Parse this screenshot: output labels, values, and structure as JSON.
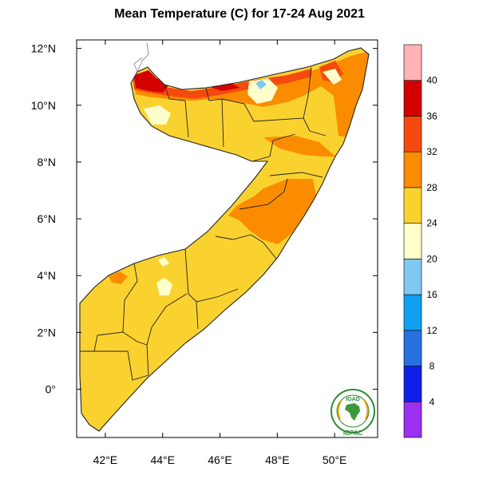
{
  "title": "Mean Temperature (C) for 17-24 Aug 2021",
  "map": {
    "lon_range": [
      41,
      51.5
    ],
    "lat_range": [
      -1.7,
      12.3
    ],
    "lat_ticks": [
      {
        "value": 12,
        "label": "12°N"
      },
      {
        "value": 10,
        "label": "10°N"
      },
      {
        "value": 8,
        "label": "8°N"
      },
      {
        "value": 6,
        "label": "6°N"
      },
      {
        "value": 4,
        "label": "4°N"
      },
      {
        "value": 2,
        "label": "2°N"
      },
      {
        "value": 0,
        "label": "0°"
      }
    ],
    "lon_ticks": [
      {
        "value": 42,
        "label": "42°E"
      },
      {
        "value": 44,
        "label": "44°E"
      },
      {
        "value": 46,
        "label": "46°E"
      },
      {
        "value": 48,
        "label": "48°E"
      },
      {
        "value": 50,
        "label": "50°E"
      }
    ],
    "colors": {
      "base": "#fad230",
      "warm": "#fb8c00",
      "hot": "#f54a0f",
      "very_hot": "#d40000",
      "mild": "#ffffcc",
      "cool": "#80c8f0"
    }
  },
  "colorbar": {
    "bins": [
      {
        "color": "#9a30f0"
      },
      {
        "color": "#1020e8"
      },
      {
        "color": "#2870e0"
      },
      {
        "color": "#10a0f0"
      },
      {
        "color": "#80c8f0"
      },
      {
        "color": "#ffffcc"
      },
      {
        "color": "#fad230"
      },
      {
        "color": "#fb8c00"
      },
      {
        "color": "#f54a0f"
      },
      {
        "color": "#d40000"
      },
      {
        "color": "#ffb2b8"
      }
    ],
    "labels": [
      "4",
      "8",
      "12",
      "16",
      "20",
      "24",
      "28",
      "32",
      "36",
      "40"
    ]
  },
  "logo": {
    "top_text": "IGAD",
    "bottom_text": "ICPAC"
  }
}
